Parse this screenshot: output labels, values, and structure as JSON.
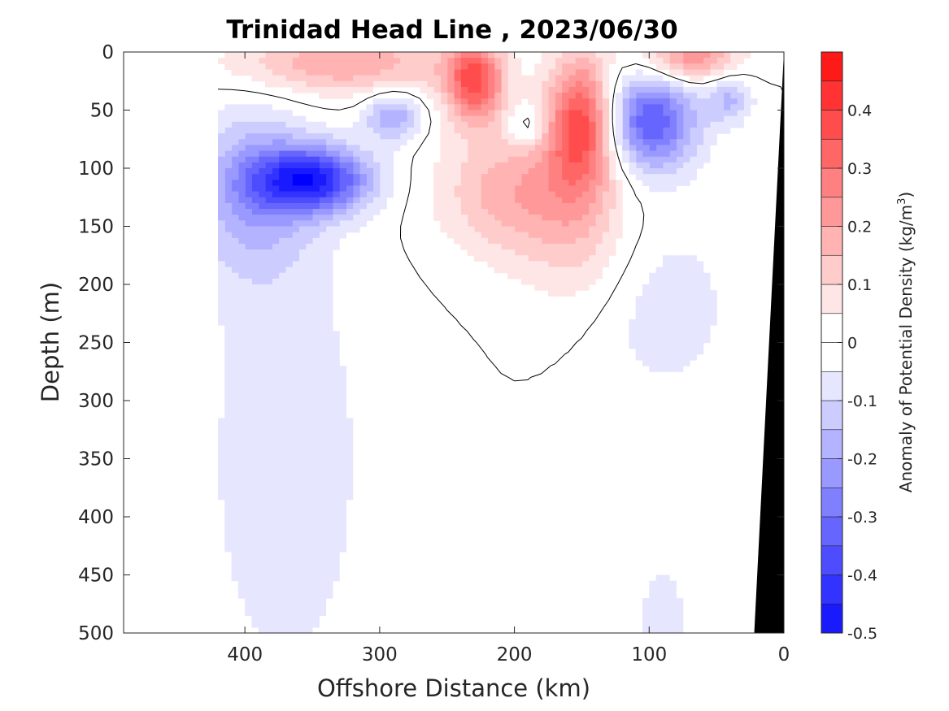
{
  "chart_data": {
    "type": "contourf",
    "title": "Trinidad Head Line , 2023/06/30",
    "xlabel": "Offshore Distance (km)",
    "ylabel": "Depth (m)",
    "xlim": [
      490,
      0
    ],
    "ylim": [
      0,
      500
    ],
    "x_reversed": true,
    "y_reversed": true,
    "x_ticks": [
      400,
      300,
      200,
      100,
      0
    ],
    "y_ticks": [
      0,
      50,
      100,
      150,
      200,
      250,
      300,
      350,
      400,
      450,
      500
    ],
    "grid": false,
    "colorbar": {
      "label_main": "Anomaly of Potential Density (kg/m",
      "label_sup": "3",
      "label_close": ")",
      "range": [
        -0.5,
        0.5
      ],
      "step": 0.05,
      "ticks": [
        0.4,
        0.3,
        0.2,
        0.1,
        0,
        -0.1,
        -0.2,
        -0.3,
        -0.4,
        -0.5
      ],
      "tick_labels": [
        "0.4",
        "0.3",
        "0.2",
        "0.1",
        "0",
        "-0.1",
        "-0.2",
        "-0.3",
        "-0.4",
        "-0.5"
      ],
      "colors_positive": [
        "#ffffff",
        "#ffe6e6",
        "#ffcccc",
        "#ffb3b3",
        "#ff9999",
        "#ff8080",
        "#ff6666",
        "#ff4d4d",
        "#ff3333",
        "#ff1a1a",
        "#ff0000"
      ],
      "colors_negative": [
        "#ffffff",
        "#e6e6ff",
        "#ccccff",
        "#b3b3ff",
        "#9999ff",
        "#8080ff",
        "#6666ff",
        "#4d4dff",
        "#3333ff",
        "#1a1aff",
        "#0000ff"
      ]
    },
    "data_extent_x": [
      420,
      0
    ],
    "field_features": [
      {
        "kind": "positive",
        "x": 230,
        "z": 25,
        "peak": 0.35,
        "sx": 15,
        "sz": 25
      },
      {
        "kind": "positive",
        "x": 150,
        "z": 60,
        "peak": 0.38,
        "sx": 18,
        "sz": 40
      },
      {
        "kind": "positive",
        "x": 200,
        "z": 120,
        "peak": 0.18,
        "sx": 40,
        "sz": 40
      },
      {
        "kind": "positive",
        "x": 330,
        "z": 10,
        "peak": 0.2,
        "sx": 60,
        "sz": 20
      },
      {
        "kind": "positive",
        "x": 70,
        "z": 5,
        "peak": 0.25,
        "sx": 25,
        "sz": 15
      },
      {
        "kind": "positive",
        "x": 150,
        "z": 160,
        "peak": 0.1,
        "sx": 30,
        "sz": 50
      },
      {
        "kind": "negative",
        "x": 350,
        "z": 110,
        "peak": -0.42,
        "sx": 30,
        "sz": 20
      },
      {
        "kind": "negative",
        "x": 395,
        "z": 120,
        "peak": -0.18,
        "sx": 30,
        "sz": 50
      },
      {
        "kind": "negative",
        "x": 100,
        "z": 60,
        "peak": -0.35,
        "sx": 25,
        "sz": 30
      },
      {
        "kind": "negative",
        "x": 290,
        "z": 55,
        "peak": -0.2,
        "sx": 15,
        "sz": 15
      },
      {
        "kind": "negative",
        "x": 190,
        "z": 65,
        "peak": -0.12,
        "sx": 10,
        "sz": 12
      },
      {
        "kind": "negative",
        "x": 40,
        "z": 40,
        "peak": -0.15,
        "sx": 12,
        "sz": 15
      },
      {
        "kind": "negative",
        "x": 370,
        "z": 350,
        "peak": -0.08,
        "sx": 50,
        "sz": 170
      },
      {
        "kind": "negative",
        "x": 90,
        "z": 220,
        "peak": -0.08,
        "sx": 40,
        "sz": 60
      },
      {
        "kind": "negative",
        "x": 90,
        "z": 490,
        "peak": -0.08,
        "sx": 15,
        "sz": 40
      }
    ],
    "bathymetry": {
      "description": "land/seafloor mask at nearshore edge",
      "points": [
        [
          0,
          0
        ],
        [
          22,
          500
        ],
        [
          0,
          500
        ]
      ]
    }
  }
}
